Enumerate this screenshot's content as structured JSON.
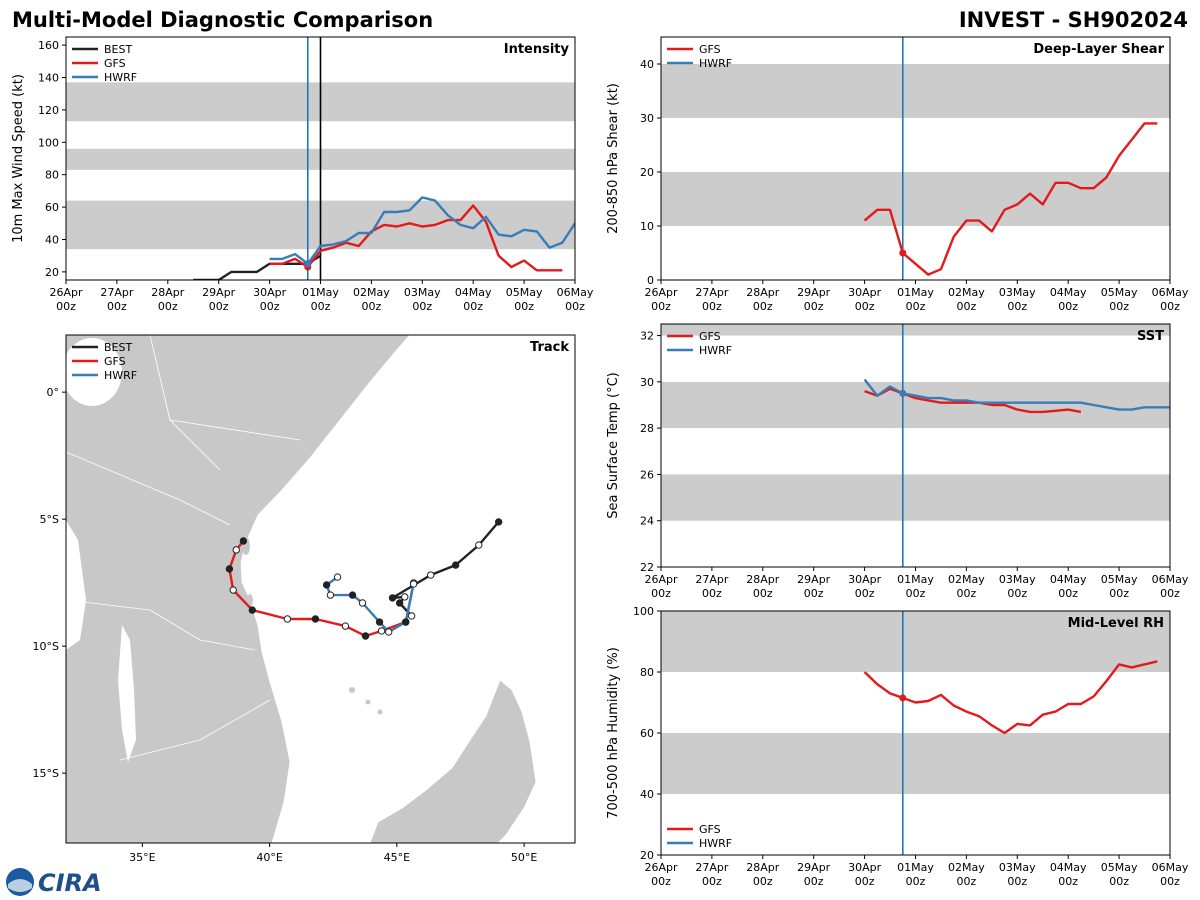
{
  "header": {
    "title": "Multi-Model Diagnostic Comparison",
    "subtitle": "INVEST - SH902024"
  },
  "logo": "CIRA",
  "chart_data": [
    {
      "type": "line",
      "title": "Intensity",
      "ylabel": "10m Max Wind Speed (kt)",
      "legend": "upper left",
      "xlim": [
        0,
        10
      ],
      "xticks": [
        {
          "value": 0,
          "label": [
            "26Apr",
            "00z"
          ]
        },
        {
          "value": 1,
          "label": [
            "27Apr",
            "00z"
          ]
        },
        {
          "value": 2,
          "label": [
            "28Apr",
            "00z"
          ]
        },
        {
          "value": 3,
          "label": [
            "29Apr",
            "00z"
          ]
        },
        {
          "value": 4,
          "label": [
            "30Apr",
            "00z"
          ]
        },
        {
          "value": 5,
          "label": [
            "01May",
            "00z"
          ]
        },
        {
          "value": 6,
          "label": [
            "02May",
            "00z"
          ]
        },
        {
          "value": 7,
          "label": [
            "03May",
            "00z"
          ]
        },
        {
          "value": 8,
          "label": [
            "04May",
            "00z"
          ]
        },
        {
          "value": 9,
          "label": [
            "05May",
            "00z"
          ]
        },
        {
          "value": 10,
          "label": [
            "06May",
            "00z"
          ]
        }
      ],
      "ylim": [
        15,
        165
      ],
      "yticks": [
        20,
        40,
        60,
        80,
        100,
        120,
        140,
        160
      ],
      "bands": [
        [
          34,
          64
        ],
        [
          83,
          96
        ],
        [
          113,
          137
        ]
      ],
      "band_color": "#cccccc",
      "vlines": [
        {
          "x": 4.75,
          "color": "#1f77b4"
        },
        {
          "x": 5,
          "color": "#000000"
        }
      ],
      "x": [
        2.5,
        2.75,
        3,
        3.25,
        3.5,
        3.75,
        4,
        4.25,
        4.5,
        4.75,
        5,
        5.25,
        5.5,
        5.75,
        6,
        6.25,
        6.5,
        6.75,
        7,
        7.25,
        7.5,
        7.75,
        8,
        8.25,
        8.5,
        8.75,
        9,
        9.25,
        9.5,
        9.75,
        10
      ],
      "series": [
        {
          "name": "BEST",
          "color": "#222222",
          "values": [
            15,
            15,
            15,
            20,
            20,
            20,
            25,
            25,
            25,
            25,
            30,
            null,
            null,
            null,
            null,
            null,
            null,
            null,
            null,
            null,
            null,
            null,
            null,
            null,
            null,
            null,
            null,
            null,
            null,
            null,
            null
          ]
        },
        {
          "name": "GFS",
          "color": "#e31a1c",
          "values": [
            null,
            null,
            null,
            null,
            null,
            null,
            25,
            25,
            28,
            23,
            33,
            35,
            38,
            36,
            45,
            49,
            48,
            50,
            48,
            49,
            52,
            52,
            61,
            51,
            30,
            23,
            27,
            21,
            21,
            21,
            null
          ]
        },
        {
          "name": "HWRF",
          "color": "#377eb8",
          "values": [
            null,
            null,
            null,
            null,
            null,
            null,
            28,
            28,
            31,
            25,
            36,
            37,
            39,
            44,
            44,
            57,
            57,
            58,
            66,
            64,
            55,
            49,
            47,
            54,
            43,
            42,
            46,
            45,
            35,
            38,
            50
          ]
        }
      ]
    },
    {
      "type": "line",
      "title": "Deep-Layer Shear",
      "ylabel": "200-850 hPa Shear (kt)",
      "legend": "upper left",
      "xlim": [
        0,
        10
      ],
      "xticks": [
        {
          "value": 0,
          "label": [
            "26Apr",
            "00z"
          ]
        },
        {
          "value": 1,
          "label": [
            "27Apr",
            "00z"
          ]
        },
        {
          "value": 2,
          "label": [
            "28Apr",
            "00z"
          ]
        },
        {
          "value": 3,
          "label": [
            "29Apr",
            "00z"
          ]
        },
        {
          "value": 4,
          "label": [
            "30Apr",
            "00z"
          ]
        },
        {
          "value": 5,
          "label": [
            "01May",
            "00z"
          ]
        },
        {
          "value": 6,
          "label": [
            "02May",
            "00z"
          ]
        },
        {
          "value": 7,
          "label": [
            "03May",
            "00z"
          ]
        },
        {
          "value": 8,
          "label": [
            "04May",
            "00z"
          ]
        },
        {
          "value": 9,
          "label": [
            "05May",
            "00z"
          ]
        },
        {
          "value": 10,
          "label": [
            "06May",
            "00z"
          ]
        }
      ],
      "ylim": [
        0,
        45
      ],
      "yticks": [
        0,
        10,
        20,
        30,
        40
      ],
      "bands": [
        [
          10,
          20
        ],
        [
          30,
          40
        ]
      ],
      "band_color": "#cccccc",
      "vlines": [
        {
          "x": 4.75,
          "color": "#1f77b4"
        }
      ],
      "x": [
        4,
        4.25,
        4.5,
        4.75,
        5,
        5.25,
        5.5,
        5.75,
        6,
        6.25,
        6.5,
        6.75,
        7,
        7.25,
        7.5,
        7.75,
        8,
        8.25,
        8.5,
        8.75,
        9,
        9.25,
        9.5,
        9.75,
        10
      ],
      "series": [
        {
          "name": "GFS",
          "color": "#e31a1c",
          "values": [
            11,
            13,
            13,
            5,
            3,
            1,
            2,
            8,
            11,
            11,
            9,
            13,
            14,
            16,
            14,
            18,
            18,
            17,
            17,
            19,
            23,
            26,
            29,
            29,
            null
          ]
        },
        {
          "name": "HWRF",
          "color": "#377eb8",
          "values": [
            null,
            null,
            null,
            null,
            null,
            null,
            null,
            null,
            null,
            null,
            null,
            null,
            null,
            null,
            null,
            null,
            null,
            null,
            null,
            null,
            null,
            null,
            null,
            null,
            null
          ]
        }
      ]
    },
    {
      "type": "track",
      "title": "Track",
      "legend": "upper left",
      "xlim": [
        32,
        52
      ],
      "xticks": [
        {
          "value": 35,
          "label": "35°E"
        },
        {
          "value": 40,
          "label": "40°E"
        },
        {
          "value": 45,
          "label": "45°E"
        },
        {
          "value": 50,
          "label": "50°E"
        }
      ],
      "ylim": [
        -17.75,
        2.25
      ],
      "yticks": [
        {
          "value": 0,
          "label": "0°"
        },
        {
          "value": -5,
          "label": "5°S"
        },
        {
          "value": -10,
          "label": "10°S"
        },
        {
          "value": -15,
          "label": "15°S"
        }
      ],
      "series": [
        {
          "name": "BEST",
          "color": "#222222",
          "x": [
            49.0,
            48.22,
            47.31,
            46.33,
            44.83,
            45.31,
            45.11,
            45.58
          ],
          "values": [
            -5.11,
            -6.02,
            -6.81,
            -7.2,
            -8.1,
            -8.06,
            -8.3,
            -8.81
          ]
        },
        {
          "name": "GFS",
          "color": "#e31a1c",
          "x": [
            45.66,
            45.35,
            44.4,
            43.77,
            42.98,
            41.8,
            40.7,
            39.32,
            38.57,
            38.42,
            38.69,
            38.97
          ],
          "values": [
            -7.51,
            -9.05,
            -9.4,
            -9.6,
            -9.21,
            -8.93,
            -8.93,
            -8.58,
            -7.79,
            -6.96,
            -6.21,
            -5.86
          ]
        },
        {
          "name": "HWRF",
          "color": "#377eb8",
          "x": [
            45.66,
            45.35,
            44.68,
            44.32,
            43.65,
            43.26,
            42.39,
            42.24,
            42.67
          ],
          "values": [
            -7.55,
            -9.05,
            -9.44,
            -9.05,
            -8.3,
            -7.99,
            -7.99,
            -7.59,
            -7.28
          ]
        }
      ]
    },
    {
      "type": "line",
      "title": "SST",
      "ylabel": "Sea Surface Temp (°C)",
      "legend": "upper left",
      "xlim": [
        0,
        10
      ],
      "xticks": [
        {
          "value": 0,
          "label": [
            "26Apr",
            "00z"
          ]
        },
        {
          "value": 1,
          "label": [
            "27Apr",
            "00z"
          ]
        },
        {
          "value": 2,
          "label": [
            "28Apr",
            "00z"
          ]
        },
        {
          "value": 3,
          "label": [
            "29Apr",
            "00z"
          ]
        },
        {
          "value": 4,
          "label": [
            "30Apr",
            "00z"
          ]
        },
        {
          "value": 5,
          "label": [
            "01May",
            "00z"
          ]
        },
        {
          "value": 6,
          "label": [
            "02May",
            "00z"
          ]
        },
        {
          "value": 7,
          "label": [
            "03May",
            "00z"
          ]
        },
        {
          "value": 8,
          "label": [
            "04May",
            "00z"
          ]
        },
        {
          "value": 9,
          "label": [
            "05May",
            "00z"
          ]
        },
        {
          "value": 10,
          "label": [
            "06May",
            "00z"
          ]
        }
      ],
      "ylim": [
        22,
        32.5
      ],
      "yticks": [
        22,
        24,
        26,
        28,
        30,
        32
      ],
      "bands": [
        [
          24,
          26
        ],
        [
          28,
          30
        ],
        [
          32,
          34
        ]
      ],
      "band_color": "#cccccc",
      "vlines": [
        {
          "x": 4.75,
          "color": "#1f77b4"
        }
      ],
      "x": [
        4,
        4.25,
        4.5,
        4.75,
        5,
        5.25,
        5.5,
        5.75,
        6,
        6.25,
        6.5,
        6.75,
        7,
        7.25,
        7.5,
        7.75,
        8,
        8.25,
        8.5,
        8.75,
        9,
        9.25,
        9.5,
        9.75,
        10
      ],
      "series": [
        {
          "name": "GFS",
          "color": "#e31a1c",
          "values": [
            29.6,
            29.4,
            29.7,
            29.5,
            29.3,
            29.2,
            29.1,
            29.1,
            29.1,
            29.1,
            29.0,
            29.0,
            28.8,
            28.7,
            28.7,
            28.75,
            28.8,
            28.7,
            null,
            null,
            null,
            null,
            null,
            null,
            null
          ]
        },
        {
          "name": "HWRF",
          "color": "#377eb8",
          "values": [
            30.1,
            29.4,
            29.8,
            29.5,
            29.4,
            29.3,
            29.3,
            29.2,
            29.2,
            29.1,
            29.1,
            29.1,
            29.1,
            29.1,
            29.1,
            29.1,
            29.1,
            29.1,
            29.0,
            28.9,
            28.8,
            28.8,
            28.9,
            28.9,
            28.9
          ]
        }
      ]
    },
    {
      "type": "line",
      "title": "Mid-Level RH",
      "ylabel": "700-500 hPa Humidity (%)",
      "legend": "lower left",
      "xlim": [
        0,
        10
      ],
      "xticks": [
        {
          "value": 0,
          "label": [
            "26Apr",
            "00z"
          ]
        },
        {
          "value": 1,
          "label": [
            "27Apr",
            "00z"
          ]
        },
        {
          "value": 2,
          "label": [
            "28Apr",
            "00z"
          ]
        },
        {
          "value": 3,
          "label": [
            "29Apr",
            "00z"
          ]
        },
        {
          "value": 4,
          "label": [
            "30Apr",
            "00z"
          ]
        },
        {
          "value": 5,
          "label": [
            "01May",
            "00z"
          ]
        },
        {
          "value": 6,
          "label": [
            "02May",
            "00z"
          ]
        },
        {
          "value": 7,
          "label": [
            "03May",
            "00z"
          ]
        },
        {
          "value": 8,
          "label": [
            "04May",
            "00z"
          ]
        },
        {
          "value": 9,
          "label": [
            "05May",
            "00z"
          ]
        },
        {
          "value": 10,
          "label": [
            "06May",
            "00z"
          ]
        }
      ],
      "ylim": [
        20,
        100
      ],
      "yticks": [
        20,
        40,
        60,
        80,
        100
      ],
      "bands": [
        [
          40,
          60
        ],
        [
          80,
          100
        ]
      ],
      "band_color": "#cccccc",
      "vlines": [
        {
          "x": 4.75,
          "color": "#1f77b4"
        }
      ],
      "x": [
        4,
        4.25,
        4.5,
        4.75,
        5,
        5.25,
        5.5,
        5.75,
        6,
        6.25,
        6.5,
        6.75,
        7,
        7.25,
        7.5,
        7.75,
        8,
        8.25,
        8.5,
        8.75,
        9,
        9.25,
        9.5,
        9.75,
        10
      ],
      "series": [
        {
          "name": "GFS",
          "color": "#e31a1c",
          "values": [
            80,
            76,
            73,
            71.5,
            70,
            70.5,
            72.5,
            69,
            67,
            65.5,
            62.5,
            60,
            63,
            62.5,
            66,
            67,
            69.5,
            69.5,
            72,
            77,
            82.5,
            81.5,
            82.5,
            83.5,
            null
          ]
        },
        {
          "name": "HWRF",
          "color": "#377eb8",
          "values": [
            null,
            null,
            null,
            null,
            null,
            null,
            null,
            null,
            null,
            null,
            null,
            null,
            null,
            null,
            null,
            null,
            null,
            null,
            null,
            null,
            null,
            null,
            null,
            null,
            null
          ]
        }
      ]
    }
  ]
}
